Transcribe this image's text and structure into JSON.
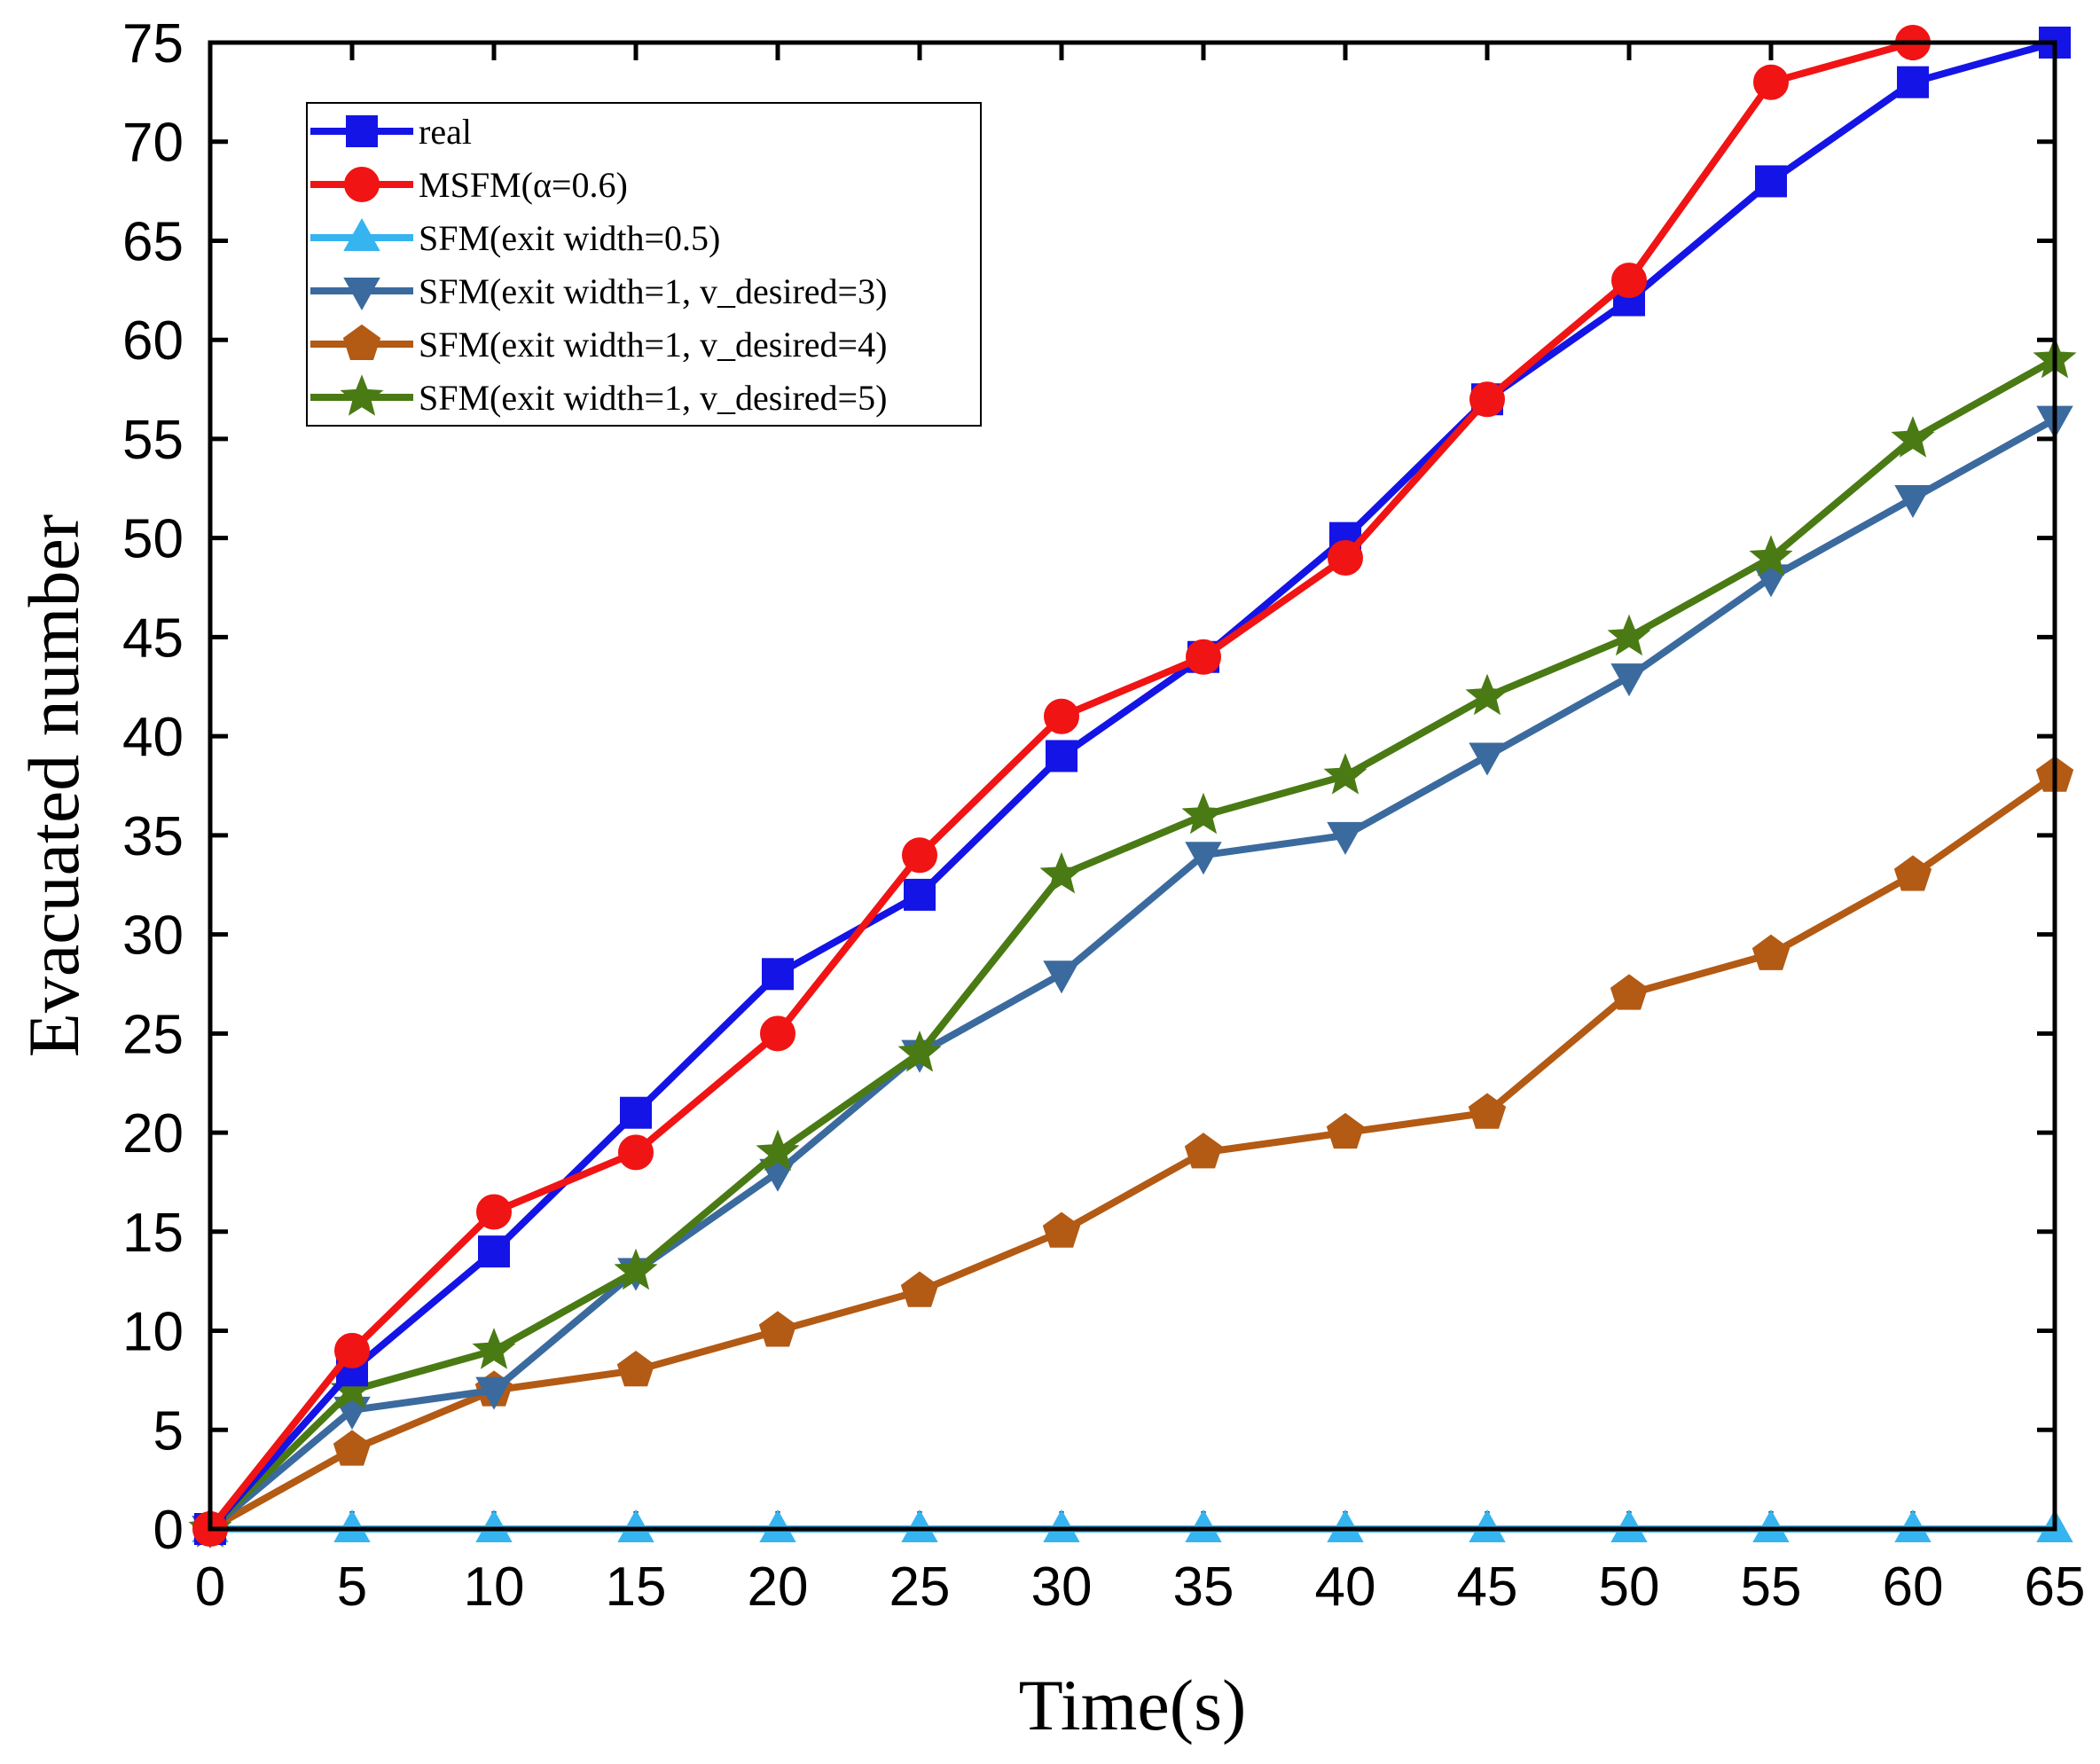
{
  "chart_data": {
    "type": "line",
    "title": "",
    "xlabel": "Time(s)",
    "ylabel": "Evacuated number",
    "xlim": [
      0,
      65
    ],
    "ylim": [
      0,
      75
    ],
    "xticks": [
      0,
      5,
      10,
      15,
      20,
      25,
      30,
      35,
      40,
      45,
      50,
      55,
      60,
      65
    ],
    "yticks": [
      0,
      5,
      10,
      15,
      20,
      25,
      30,
      35,
      40,
      45,
      50,
      55,
      60,
      65,
      70,
      75
    ],
    "grid": false,
    "legend_position": "top-left",
    "x": [
      0,
      5,
      10,
      15,
      20,
      25,
      30,
      35,
      40,
      45,
      50,
      55,
      60,
      65
    ],
    "series": [
      {
        "name": "real",
        "color": "#1414e6",
        "marker": "square",
        "values": [
          0,
          8,
          14,
          21,
          28,
          32,
          39,
          44,
          50,
          57,
          62,
          68,
          73,
          75
        ]
      },
      {
        "name": "MSFM(α=0.6)",
        "color": "#f01414",
        "marker": "circle",
        "values": [
          0,
          9,
          16,
          19,
          25,
          34,
          41,
          44,
          49,
          57,
          63,
          73,
          75,
          null
        ]
      },
      {
        "name": "SFM(exit width=0.5)",
        "color": "#35b4f0",
        "marker": "triangle-up",
        "values": [
          0,
          0,
          0,
          0,
          0,
          0,
          0,
          0,
          0,
          0,
          0,
          0,
          0,
          0
        ]
      },
      {
        "name": "SFM(exit width=1, v_desired=3)",
        "color": "#3b6a9e",
        "marker": "triangle-down",
        "values": [
          0,
          6,
          7,
          13,
          18,
          24,
          28,
          34,
          35,
          39,
          43,
          48,
          52,
          56
        ]
      },
      {
        "name": "SFM(exit width=1, v_desired=4)",
        "color": "#b35a14",
        "marker": "pentagon",
        "values": [
          0,
          4,
          7,
          8,
          10,
          12,
          15,
          19,
          20,
          21,
          27,
          29,
          33,
          38
        ]
      },
      {
        "name": "SFM(exit width=1, v_desired=5)",
        "color": "#4a7a14",
        "marker": "star",
        "values": [
          0,
          7,
          9,
          13,
          19,
          24,
          33,
          36,
          38,
          42,
          45,
          49,
          55,
          59
        ]
      }
    ]
  }
}
